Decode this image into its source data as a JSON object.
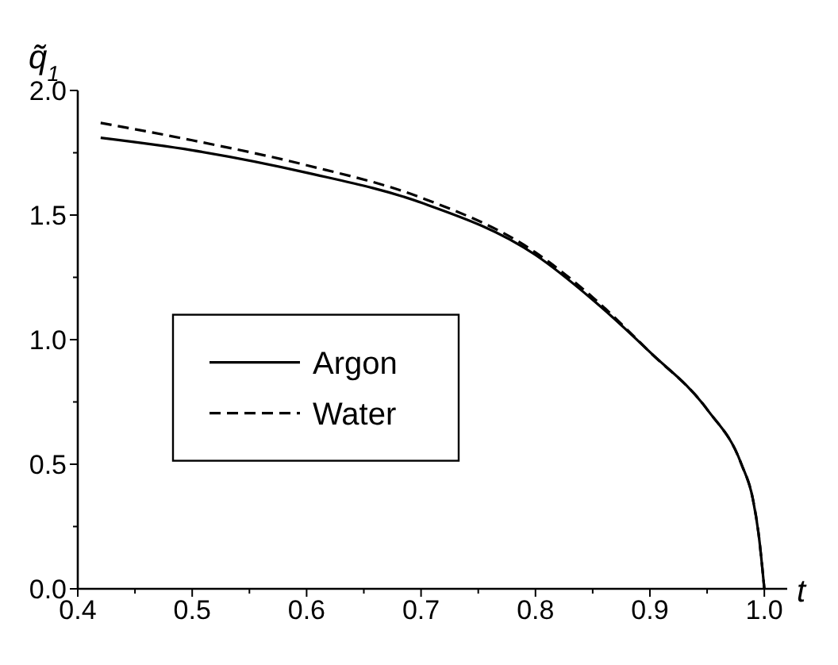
{
  "chart_data": {
    "type": "line",
    "xlabel": "t",
    "ylabel": "q̃$_{1}$",
    "xlim": [
      0.4,
      1.02
    ],
    "ylim": [
      0,
      2.0
    ],
    "xticks": [
      0.4,
      {
        "value": 0.45,
        "label": null
      },
      0.5,
      {
        "value": 0.55,
        "label": null
      },
      0.6,
      {
        "value": 0.65,
        "label": null
      },
      0.7,
      {
        "value": 0.75,
        "label": null
      },
      0.8,
      {
        "value": 0.85,
        "label": null
      },
      0.9,
      {
        "value": 0.95,
        "label": null
      },
      "1.0"
    ],
    "yticks": [
      "0.0",
      {
        "value": 0.25,
        "label": null
      },
      0.5,
      {
        "value": 0.75,
        "label": null
      },
      "1.0",
      {
        "value": 1.25,
        "label": null
      },
      1.5,
      {
        "value": 1.75,
        "label": null
      },
      "2.0"
    ],
    "grid": false,
    "legend": "left",
    "series": [
      {
        "name": "Argon",
        "color": "#000000",
        "line_style": "solid",
        "x": [
          0.42,
          0.5,
          0.6,
          0.7,
          0.8,
          0.85,
          0.9,
          0.95,
          0.98,
          0.99,
          0.995,
          1.0
        ],
        "values": [
          1.81,
          1.76,
          1.67,
          1.55,
          1.34,
          1.16,
          0.95,
          0.72,
          0.5,
          0.36,
          0.22,
          0
        ]
      },
      {
        "name": "Water",
        "color": "#000000",
        "line_style": "dashed",
        "x": [
          0.42,
          0.5,
          0.6,
          0.7,
          0.8,
          0.85,
          0.9,
          0.95,
          0.98,
          0.99,
          0.995,
          1.0
        ],
        "values": [
          1.87,
          1.8,
          1.7,
          1.57,
          1.35,
          1.17,
          0.95,
          0.72,
          0.5,
          0.36,
          0.22,
          0
        ]
      }
    ]
  }
}
